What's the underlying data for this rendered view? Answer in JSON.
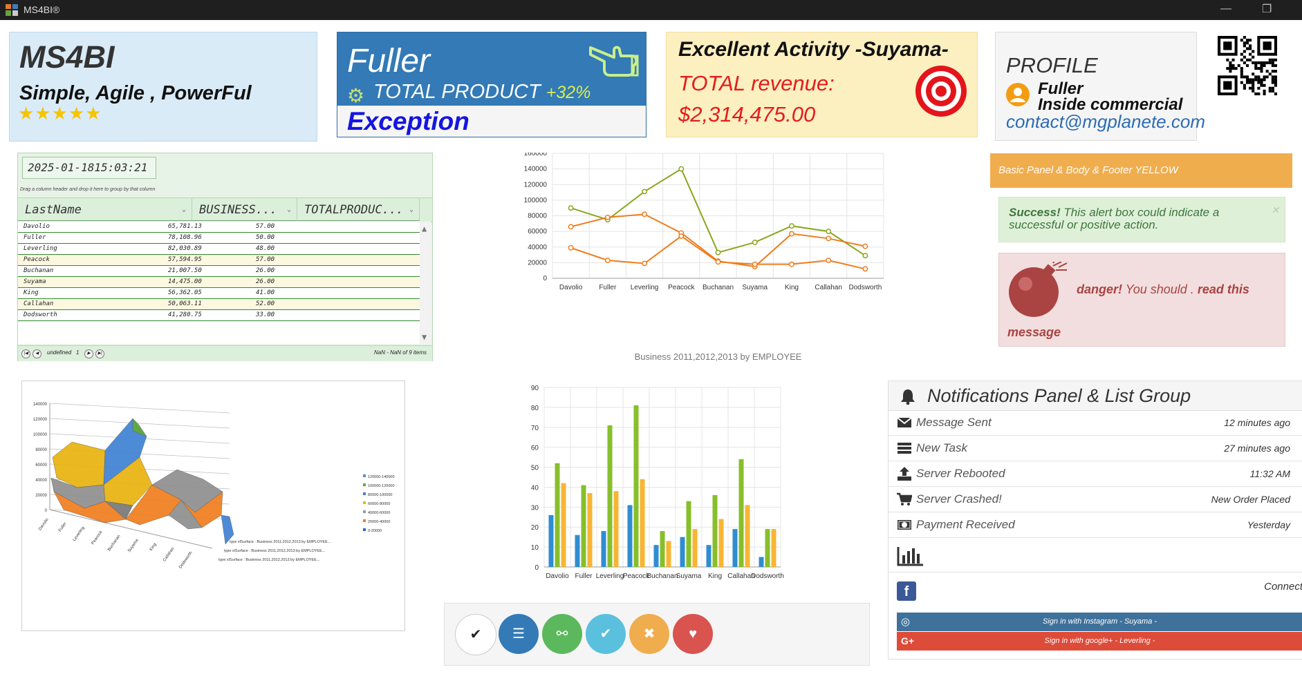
{
  "window": {
    "title": "MS4BI®"
  },
  "card_brand": {
    "title": "MS4BI",
    "tagline": "Simple, Agile , PowerFul",
    "stars": "★★★★★"
  },
  "card_product": {
    "name": "Fuller",
    "label": "TOTAL PRODUCT",
    "change": "+32%",
    "footer": "Exception"
  },
  "card_revenue": {
    "title": "Excellent Activity -Suyama-",
    "label": "TOTAL revenue:",
    "value": "$2,314,475.00"
  },
  "card_profile": {
    "title": "PROFILE",
    "name": "Fuller",
    "role": "Inside commercial",
    "email": "contact@mgplanete.com"
  },
  "grid": {
    "datetime": "2025-01-1815:03:21",
    "group_hint": "Drag a column header and drop it here to group by that column",
    "columns": [
      "LastName",
      "BUSINESS...",
      "TOTALPRODUC..."
    ],
    "rows": [
      [
        "Davolio",
        "65,781.13",
        "57.00"
      ],
      [
        "Fuller",
        "78,108.96",
        "50.00"
      ],
      [
        "Leverling",
        "82,030.89",
        "48.00"
      ],
      [
        "Peacock",
        "57,594.95",
        "57.00"
      ],
      [
        "Buchanan",
        "21,007.50",
        "26.00"
      ],
      [
        "Suyama",
        "14,475.00",
        "26.00"
      ],
      [
        "King",
        "56,362.05",
        "41.00"
      ],
      [
        "Callahan",
        "50,063.11",
        "52.00"
      ],
      [
        "Dodsworth",
        "41,280.75",
        "33.00"
      ]
    ],
    "pager_page_label": "undefined",
    "pager_page": "1",
    "pager_info": "NaN - NaN of 9 items"
  },
  "chart_data": [
    {
      "type": "line",
      "title": "Business 2011,2012,2013 by EMPLOYEE",
      "categories": [
        "Davolio",
        "Fuller",
        "Leverling",
        "Peacock",
        "Buchanan",
        "Suyama",
        "King",
        "Callahan",
        "Dodsworth"
      ],
      "ylim": [
        0,
        160000
      ],
      "yticks": [
        0,
        20000,
        40000,
        60000,
        80000,
        100000,
        120000,
        140000,
        160000
      ],
      "series": [
        {
          "color": "#8aa61c",
          "values": [
            90000,
            75000,
            111000,
            140000,
            33000,
            46000,
            67000,
            60000,
            29000
          ]
        },
        {
          "color": "#f07d1c",
          "values": [
            66000,
            78000,
            82000,
            58000,
            22000,
            15000,
            57000,
            51000,
            41000
          ]
        },
        {
          "color": "#f07d1c",
          "values": [
            39000,
            23000,
            19000,
            54000,
            21000,
            18000,
            18000,
            23000,
            12000
          ]
        }
      ],
      "grid": true
    },
    {
      "type": "bar",
      "categories": [
        "Davolio",
        "Fuller",
        "Leverling",
        "Peacock",
        "Buchanan",
        "Suyama",
        "King",
        "Callahan",
        "Dodsworth"
      ],
      "tick_labels": [
        "Davolio",
        "Fuller",
        "Leverling",
        "Peacock",
        "Buchanan",
        "Suyama",
        "King",
        "Callahan",
        "Dodsworth"
      ],
      "ylim": [
        0,
        90
      ],
      "yticks": [
        0,
        10,
        20,
        30,
        40,
        50,
        60,
        70,
        80,
        90
      ],
      "series": [
        {
          "color": "#2f8dd1",
          "values": [
            26,
            16,
            18,
            31,
            11,
            15,
            11,
            19,
            5
          ]
        },
        {
          "color": "#87bf2a",
          "values": [
            52,
            41,
            71,
            81,
            18,
            33,
            36,
            54,
            19
          ]
        },
        {
          "color": "#f8b534",
          "values": [
            42,
            37,
            38,
            44,
            13,
            19,
            24,
            31,
            19
          ]
        }
      ],
      "grid": true
    },
    {
      "type": "area",
      "categories": [
        "Davolio",
        "Fuller",
        "Leverling",
        "Peacock",
        "Buchanan",
        "Suyama",
        "King",
        "Callahan",
        "Dodsworth"
      ],
      "yticks": [
        0,
        20000,
        40000,
        60000,
        80000,
        100000,
        120000,
        140000
      ],
      "legend": [
        "120000-140000",
        "100000-120000",
        "80000-100000",
        "60000-80000",
        "40000-60000",
        "20000-40000",
        "0-20000"
      ],
      "legend_colors": [
        "#4f8fd6",
        "#62a83a",
        "#4a7bc8",
        "#f0b400",
        "#9a9a9a",
        "#f07d1c",
        "#2f67c7"
      ],
      "series_labels": [
        "type xlSurface : Business 2011,2012,2013 by EMPLOYEE...",
        "type xlSurface : Business 2011,2012,2013 by EMPLOYEE...",
        "type xlSurface : Business 2011,2012,2013 by EMPLOYEE..."
      ]
    }
  ],
  "action_buttons": [
    {
      "name": "check-button",
      "glyph": "✔",
      "bg": "#ffffff",
      "fg": "#222222"
    },
    {
      "name": "list-button",
      "glyph": "☰",
      "bg": "#337ab7",
      "fg": "#ffffff"
    },
    {
      "name": "link-button",
      "glyph": "⚯",
      "bg": "#5cb85c",
      "fg": "#ffffff"
    },
    {
      "name": "ok-button",
      "glyph": "✔",
      "bg": "#5bc0de",
      "fg": "#ffffff"
    },
    {
      "name": "close-button",
      "glyph": "✖",
      "bg": "#f0ad4e",
      "fg": "#ffffff"
    },
    {
      "name": "favorite-button",
      "glyph": "♥",
      "bg": "#d9534f",
      "fg": "#ffffff"
    }
  ],
  "panels": {
    "basic": "Basic Panel & Body & Footer YELLOW",
    "success_strong": "Success!",
    "success_text": "This alert box could indicate a successful or positive action.",
    "danger_strong": "danger!",
    "danger_text": "You should .",
    "danger_link": "read this",
    "danger_tail": "message"
  },
  "notifications": {
    "title": "Notifications Panel & List Group",
    "items": [
      {
        "label": "Message Sent",
        "time": "12 minutes ago",
        "icon": "envelope-icon"
      },
      {
        "label": "New Task",
        "time": "27 minutes ago",
        "icon": "tasks-icon"
      },
      {
        "label": "Server Rebooted",
        "time": "11:32 AM",
        "icon": "upload-icon"
      },
      {
        "label": "Server Crashed!",
        "time": "New Order Placed",
        "icon": "cart-icon"
      },
      {
        "label": "Payment Received",
        "time": "Yesterday",
        "icon": "money-icon"
      }
    ],
    "connect": "Connect",
    "instagram": "Sign in with Instagram - Suyama -",
    "google": "Sign in with google+ - Leverling -"
  },
  "colors": {
    "primary": "#337ab7",
    "warning": "#f0ad4e",
    "danger": "#d9534f",
    "success": "#5cb85c",
    "info": "#5bc0de",
    "instagram": "#3f729b",
    "google": "#dd4b39",
    "facebook": "#3b5998"
  }
}
